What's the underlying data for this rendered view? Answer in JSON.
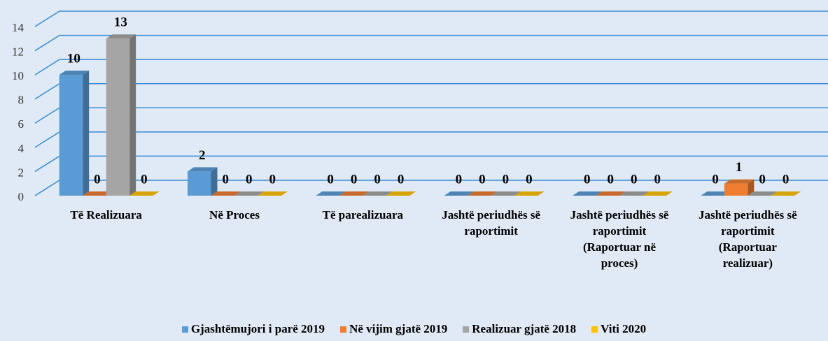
{
  "chart_data": {
    "type": "bar3d",
    "categories": [
      "Të Realizuara",
      "Në Proces",
      "Të parealizuara",
      "Jashtë periudhës së raportimit",
      "Jashtë periudhës së raportimit (Raportuar në proces)",
      "Jashtë periudhës së raportimit (Raportuar realizuar)"
    ],
    "series": [
      {
        "name": "Gjashtëmujori i parë 2019",
        "color": "#5b9bd5",
        "values": [
          10,
          2,
          0,
          0,
          0,
          0
        ]
      },
      {
        "name": "Në vijim gjatë 2019",
        "color": "#ed7d31",
        "values": [
          0,
          0,
          0,
          0,
          0,
          1
        ]
      },
      {
        "name": "Realizuar gjatë 2018",
        "color": "#a5a5a5",
        "values": [
          13,
          0,
          0,
          0,
          0,
          0
        ]
      },
      {
        "name": "Viti 2020",
        "color": "#ffc000",
        "values": [
          0,
          0,
          0,
          0,
          0,
          0
        ]
      }
    ],
    "ylim": [
      0,
      14
    ],
    "yticks": [
      0,
      2,
      4,
      6,
      8,
      10,
      12,
      14
    ],
    "grid": true,
    "legend": "bottom"
  }
}
